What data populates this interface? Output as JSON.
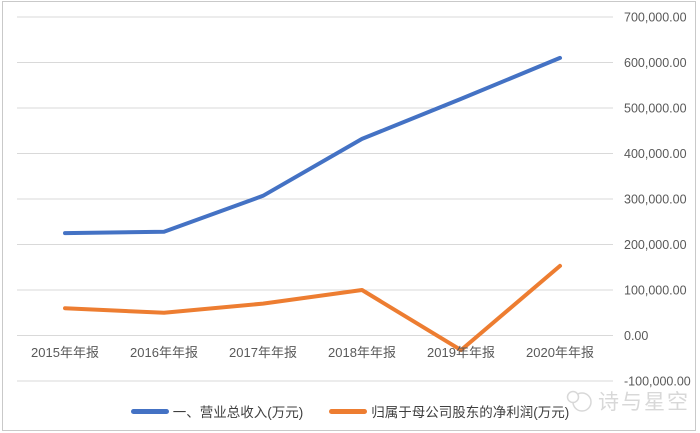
{
  "chart_data": {
    "type": "line",
    "categories": [
      "2015年年报",
      "2016年年报",
      "2017年年报",
      "2018年年报",
      "2019年年报",
      "2020年年报"
    ],
    "series": [
      {
        "id": "revenue-line",
        "name": "一、营业总收入(万元)",
        "color": "#4472C4",
        "values": [
          225000,
          228000,
          307000,
          432000,
          520000,
          610000
        ]
      },
      {
        "id": "net-profit-line",
        "name": "归属于母公司股东的净利润(万元)",
        "color": "#ED7D31",
        "values": [
          60000,
          50000,
          70000,
          100000,
          -32000,
          153000
        ]
      }
    ],
    "y_axis": {
      "side": "right",
      "min": -100000,
      "max": 700000,
      "step": 100000,
      "tick_labels": [
        "700,000.00",
        "600,000.00",
        "500,000.00",
        "400,000.00",
        "300,000.00",
        "200,000.00",
        "100,000.00",
        "0.00",
        "-100,000.00"
      ]
    },
    "grid": true,
    "legend_position": "bottom",
    "title": ""
  },
  "watermark": {
    "text": "诗与星空"
  },
  "colors": {
    "grid": "#d9d9d9",
    "axis_text": "#595959",
    "legend_text": "#3f3f3f",
    "frame_border": "#c9c9c9",
    "watermark": "#d8d8d8"
  }
}
